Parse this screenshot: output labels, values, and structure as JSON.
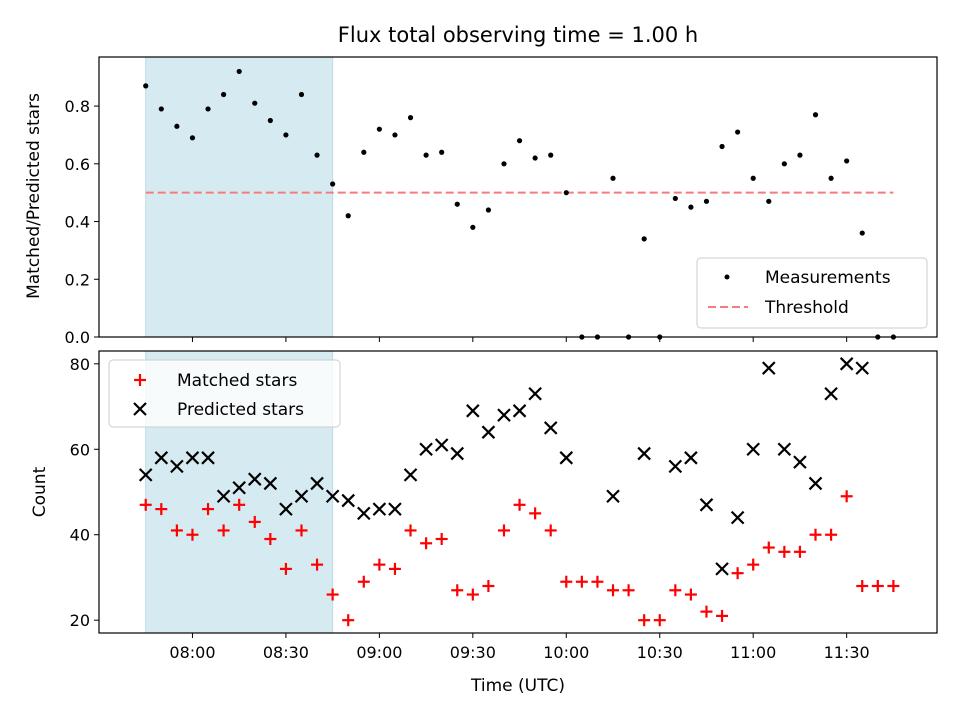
{
  "chart_data": [
    {
      "type": "scatter",
      "title": "Flux total observing time = 1.00 h",
      "xlabel": "",
      "ylabel": "Matched/Predicted stars",
      "ylim": [
        0,
        0.97
      ],
      "yticks": [
        0.0,
        0.2,
        0.4,
        0.6,
        0.8
      ],
      "ytick_labels": [
        "0.0",
        "0.2",
        "0.4",
        "0.6",
        "0.8"
      ],
      "xlim": [
        "07:30",
        "11:59"
      ],
      "x_unit": "minutes",
      "highlight_span": [
        "07:45",
        "08:45"
      ],
      "highlight_color": "#d6ebf1",
      "legend_position": "lower-right",
      "series": [
        {
          "name": "Measurements",
          "kind": "points",
          "color": "#000000",
          "x": [
            "07:45",
            "07:50",
            "07:55",
            "08:00",
            "08:05",
            "08:10",
            "08:15",
            "08:20",
            "08:25",
            "08:30",
            "08:35",
            "08:40",
            "08:45",
            "08:50",
            "08:55",
            "09:00",
            "09:05",
            "09:10",
            "09:15",
            "09:20",
            "09:25",
            "09:30",
            "09:35",
            "09:40",
            "09:45",
            "09:50",
            "09:55",
            "10:00",
            "10:05",
            "10:10",
            "10:15",
            "10:20",
            "10:25",
            "10:30",
            "10:35",
            "10:40",
            "10:45",
            "10:50",
            "10:55",
            "11:00",
            "11:05",
            "11:10",
            "11:15",
            "11:20",
            "11:25",
            "11:30",
            "11:35",
            "11:40",
            "11:45"
          ],
          "y": [
            0.87,
            0.79,
            0.73,
            0.69,
            0.79,
            0.84,
            0.92,
            0.81,
            0.75,
            0.7,
            0.84,
            0.63,
            0.53,
            0.42,
            0.64,
            0.72,
            0.7,
            0.76,
            0.63,
            0.64,
            0.46,
            0.38,
            0.44,
            0.6,
            0.68,
            0.62,
            0.63,
            0.5,
            0.0,
            0.0,
            0.55,
            0.0,
            0.34,
            0.0,
            0.48,
            0.45,
            0.47,
            0.66,
            0.71,
            0.55,
            0.47,
            0.6,
            0.63,
            0.77,
            0.55,
            0.61,
            0.36,
            0.0,
            0.0
          ]
        },
        {
          "name": "Threshold",
          "kind": "dashed-line",
          "color": "#f47c7c",
          "x": [
            "07:45",
            "11:45"
          ],
          "y": [
            0.5,
            0.5
          ]
        }
      ]
    },
    {
      "type": "scatter",
      "title": "",
      "xlabel": "Time (UTC)",
      "ylabel": "Count",
      "ylim": [
        17,
        83
      ],
      "yticks": [
        20,
        40,
        60,
        80
      ],
      "ytick_labels": [
        "20",
        "40",
        "60",
        "80"
      ],
      "xlim": [
        "07:30",
        "11:59"
      ],
      "x_unit": "minutes",
      "xticks": [
        "08:00",
        "08:30",
        "09:00",
        "09:30",
        "10:00",
        "10:30",
        "11:00",
        "11:30"
      ],
      "xtick_labels": [
        "08:00",
        "08:30",
        "09:00",
        "09:30",
        "10:00",
        "10:30",
        "11:00",
        "11:30"
      ],
      "highlight_span": [
        "07:45",
        "08:45"
      ],
      "highlight_color": "#d6ebf1",
      "legend_position": "upper-left",
      "series": [
        {
          "name": "Matched stars",
          "kind": "plus",
          "color": "#ff0000",
          "x": [
            "07:45",
            "07:50",
            "07:55",
            "08:00",
            "08:05",
            "08:10",
            "08:15",
            "08:20",
            "08:25",
            "08:30",
            "08:35",
            "08:40",
            "08:45",
            "08:50",
            "08:55",
            "09:00",
            "09:05",
            "09:10",
            "09:15",
            "09:20",
            "09:25",
            "09:30",
            "09:35",
            "09:40",
            "09:45",
            "09:50",
            "09:55",
            "10:00",
            "10:05",
            "10:10",
            "10:15",
            "10:20",
            "10:25",
            "10:30",
            "10:35",
            "10:40",
            "10:45",
            "10:50",
            "10:55",
            "11:00",
            "11:05",
            "11:10",
            "11:15",
            "11:20",
            "11:25",
            "11:30",
            "11:35",
            "11:40",
            "11:45"
          ],
          "y": [
            47,
            46,
            41,
            40,
            46,
            41,
            47,
            43,
            39,
            32,
            41,
            33,
            26,
            20,
            29,
            33,
            32,
            41,
            38,
            39,
            27,
            26,
            28,
            41,
            47,
            45,
            41,
            29,
            29,
            29,
            27,
            27,
            20,
            20,
            27,
            26,
            22,
            21,
            31,
            33,
            37,
            36,
            36,
            40,
            40,
            49,
            28,
            28,
            28
          ]
        },
        {
          "name": "Predicted stars",
          "kind": "x",
          "color": "#000000",
          "x": [
            "07:45",
            "07:50",
            "07:55",
            "08:00",
            "08:05",
            "08:10",
            "08:15",
            "08:20",
            "08:25",
            "08:30",
            "08:35",
            "08:40",
            "08:45",
            "08:50",
            "08:55",
            "09:00",
            "09:05",
            "09:10",
            "09:15",
            "09:20",
            "09:25",
            "09:30",
            "09:35",
            "09:40",
            "09:45",
            "09:50",
            "09:55",
            "10:00",
            "10:15",
            "10:25",
            "10:35",
            "10:40",
            "10:45",
            "10:50",
            "10:55",
            "11:00",
            "11:05",
            "11:10",
            "11:15",
            "11:20",
            "11:25",
            "11:30",
            "11:35"
          ],
          "y": [
            54,
            58,
            56,
            58,
            58,
            49,
            51,
            53,
            52,
            46,
            49,
            52,
            49,
            48,
            45,
            46,
            46,
            54,
            60,
            61,
            59,
            69,
            64,
            68,
            69,
            73,
            65,
            58,
            49,
            59,
            56,
            58,
            47,
            32,
            44,
            60,
            79,
            60,
            57,
            52,
            73,
            80,
            79
          ]
        }
      ]
    }
  ]
}
